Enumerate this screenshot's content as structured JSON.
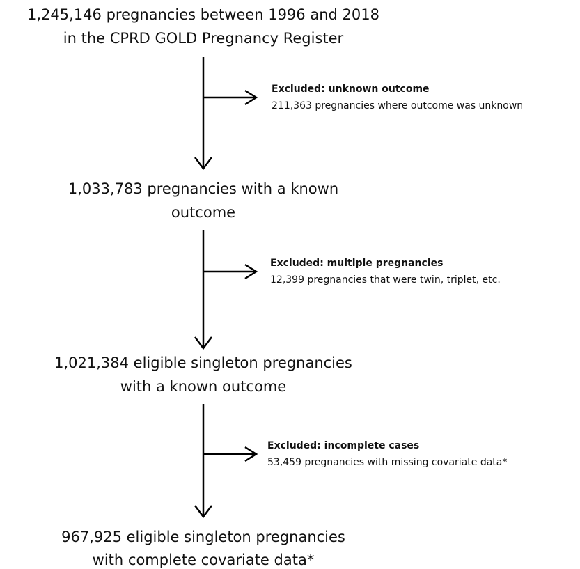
{
  "nodes": [
    {
      "lines": [
        "1,245,146 pregnancies between 1996 and 2018",
        "in the CPRD GOLD Pregnancy Register"
      ]
    },
    {
      "lines": [
        "1,033,783 pregnancies with a known",
        "outcome"
      ]
    },
    {
      "lines": [
        "1,021,384 eligible singleton pregnancies",
        "with a known outcome"
      ]
    },
    {
      "lines": [
        "967,925 eligible singleton pregnancies",
        "with complete covariate data*"
      ]
    }
  ],
  "exclusions": [
    {
      "title": "Excluded: unknown outcome",
      "detail": "211,363 pregnancies where outcome was unknown"
    },
    {
      "title": "Excluded: multiple pregnancies",
      "detail": "12,399 pregnancies that were twin, triplet, etc."
    },
    {
      "title": "Excluded: incomplete cases",
      "detail": "53,459 pregnancies with missing covariate data*"
    }
  ]
}
